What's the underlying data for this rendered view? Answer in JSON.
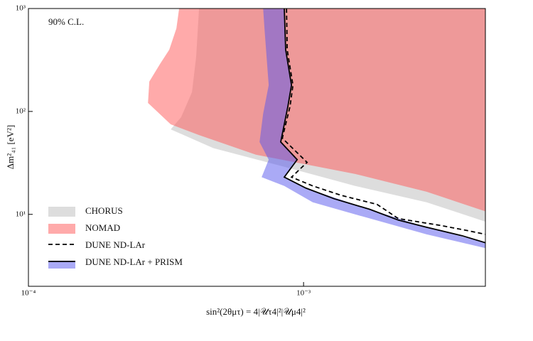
{
  "chart_data": {
    "type": "line",
    "annotation": "90% C.L.",
    "x_label": "sin²(2θμτ) = 4|𝒰τ4|²|𝒰μ4|²",
    "y_label": "Δm²₄₁ [eV²]",
    "x_log": true,
    "y_log": true,
    "xlim": [
      0.0001,
      0.00458
    ],
    "ylim": [
      2,
      1000
    ],
    "xticks": [
      {
        "value": 0.0001,
        "label": "10⁻⁴"
      },
      {
        "value": 0.001,
        "label": "10⁻³"
      }
    ],
    "yticks": [
      {
        "value": 10,
        "label": "10¹"
      },
      {
        "value": 100,
        "label": "10²"
      },
      {
        "value": 1000,
        "label": "10³"
      }
    ],
    "legend": "lower left",
    "series": [
      {
        "name": "CHORUS",
        "kind": "region",
        "color": "#dddddd",
        "opacity": 1,
        "x": [
          0.000417,
          0.000407,
          0.000393,
          0.000359,
          0.000329,
          0.00047,
          0.000851,
          0.00154,
          0.0028,
          0.00458,
          0.00458
        ],
        "y": [
          1000,
          340,
          154,
          88,
          67,
          44,
          29,
          18.9,
          13.1,
          8.5,
          1000
        ]
      },
      {
        "name": "NOMAD",
        "kind": "region",
        "color": "#ff5555",
        "opacity": 0.5,
        "x": [
          0.000353,
          0.000345,
          0.000325,
          0.000301,
          0.000275,
          0.000272,
          0.000329,
          0.000417,
          0.000671,
          0.00154,
          0.0028,
          0.00458,
          0.00458
        ],
        "y": [
          1000,
          641,
          398,
          290,
          195,
          121,
          75,
          59,
          38,
          24.7,
          16.6,
          10.7,
          1000
        ]
      },
      {
        "name": "DUNE ND-LAr",
        "kind": "line",
        "dash": true,
        "color": "#000000",
        "x": [
          0.000867,
          0.000872,
          0.000915,
          0.000893,
          0.000837,
          0.00103,
          0.000904,
          0.00108,
          0.00137,
          0.00185,
          0.00221,
          0.00315,
          0.004,
          0.00458
        ],
        "y": [
          1000,
          398,
          180,
          112,
          55,
          32,
          23,
          18.9,
          15.3,
          12.5,
          9.1,
          7.8,
          6.9,
          6.4
        ]
      },
      {
        "name": "DUNE ND-LAr + PRISM",
        "kind": "line",
        "dash": false,
        "color": "#000000",
        "band_color": "#5555ee",
        "band_opacity": 0.5,
        "x": [
          0.000851,
          0.000861,
          0.000904,
          0.000877,
          0.000826,
          0.000948,
          0.000851,
          0.00102,
          0.00129,
          0.00174,
          0.00221,
          0.0028,
          0.00377,
          0.00458
        ],
        "y": [
          1000,
          398,
          180,
          112,
          50.5,
          34,
          23,
          18,
          14.2,
          11.2,
          8.8,
          7.5,
          6.2,
          5.3
        ],
        "band_x": [
          0.000713,
          0.000721,
          0.000747,
          0.000713,
          0.000692,
          0.000747,
          0.000704,
          0.000851,
          0.00108,
          0.00154,
          0.0028,
          0.00458,
          0.00458,
          0.0028,
          0.00174,
          0.00102,
          0.000851,
          0.000948,
          0.000826,
          0.000877,
          0.000904,
          0.000861,
          0.000851
        ],
        "band_y": [
          1000,
          641,
          180,
          95,
          50.5,
          34,
          23,
          18.9,
          13.1,
          10,
          6.4,
          4.7,
          5.3,
          7.5,
          11.2,
          18,
          23,
          34,
          50.5,
          112,
          180,
          398,
          1000
        ]
      }
    ]
  }
}
